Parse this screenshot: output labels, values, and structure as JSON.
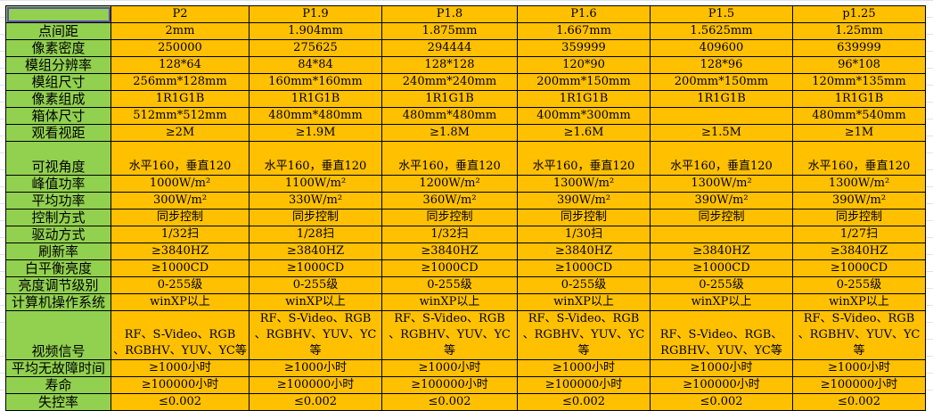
{
  "header": {
    "corner": "",
    "columns": [
      "P2",
      "P1.9",
      "P1.8",
      "P1.6",
      "P1.5",
      "p1.25"
    ]
  },
  "rows": [
    {
      "label": "点间距",
      "values": [
        "2mm",
        "1.904mm",
        "1.875mm",
        "1.667mm",
        "1.5625mm",
        "1.25mm"
      ]
    },
    {
      "label": "像素密度",
      "values": [
        "250000",
        "275625",
        "294444",
        "359999",
        "409600",
        "639999"
      ]
    },
    {
      "label": "模组分辨率",
      "values": [
        "128*64",
        "84*84",
        "128*128",
        "120*90",
        "128*96",
        "96*108"
      ]
    },
    {
      "label": "模组尺寸",
      "values": [
        "256mm*128mm",
        "160mm*160mm",
        "240mm*240mm",
        "200mm*150mm",
        "200mm*150mm",
        "120mm*135mm"
      ]
    },
    {
      "label": "像素组成",
      "values": [
        "1R1G1B",
        "1R1G1B",
        "1R1G1B",
        "1R1G1B",
        "1R1G1B",
        "1R1G1B"
      ]
    },
    {
      "label": "箱体尺寸",
      "values": [
        "512mm*512mm",
        "480mm*480mm",
        "480mm*480mm",
        "400mm*300mm",
        "",
        "480mm*540mm"
      ]
    },
    {
      "label": "观看视距",
      "values": [
        "≥2M",
        "≥1.9M",
        "≥1.8M",
        "≥1.6M",
        "≥1.5M",
        "≥1M"
      ]
    },
    {
      "label": "可视角度",
      "values": [
        "水平160，垂直120",
        "水平160，垂直120",
        "水平160，垂直120",
        "水平160，垂直120",
        "水平160，垂直120",
        "水平160，垂直120"
      ]
    },
    {
      "label": "峰值功率",
      "values": [
        "1000W/m²",
        "1100W/m²",
        "1200W/m²",
        "1300W/m²",
        "1300W/m²",
        "1300W/m²"
      ]
    },
    {
      "label": "平均功率",
      "values": [
        "300W/m²",
        "330W/m²",
        "360W/m²",
        "390W/m²",
        "390W/m²",
        "390W/m²"
      ]
    },
    {
      "label": "控制方式",
      "values": [
        "同步控制",
        "同步控制",
        "同步控制",
        "同步控制",
        "同步控制",
        "同步控制"
      ]
    },
    {
      "label": "驱动方式",
      "values": [
        "1/32扫",
        "1/28扫",
        "1/32扫",
        "1/30扫",
        "",
        "1/27扫"
      ]
    },
    {
      "label": "刷新率",
      "values": [
        "≥3840HZ",
        "≥3840HZ",
        "≥3840HZ",
        "≥3840HZ",
        "≥3840HZ",
        "≥3840HZ"
      ]
    },
    {
      "label": "白平衡亮度",
      "values": [
        "≥1000CD",
        "≥1000CD",
        "≥1000CD",
        "≥1000CD",
        "≥1000CD",
        "≥1000CD"
      ]
    },
    {
      "label": "亮度调节级别",
      "values": [
        "0-255级",
        "0-255级",
        "0-255级",
        "0-255级",
        "0-255级",
        "0-255级"
      ]
    },
    {
      "label": "计算机操作系统",
      "values": [
        "winXP以上",
        "winXP以上",
        "winXP以上",
        "winXP以上",
        "winXP以上",
        "winXP以上"
      ]
    },
    {
      "label": "视频信号",
      "values": [
        "RF、S-Video、RGB\n、RGBHV、YUV、YC等",
        "RF、S-Video、RGB\n、RGBHV、YUV、YC等",
        "RF、S-Video、RGB\n、RGBHV、YUV、YC等",
        "RF、S-Video、RGB\n、RGBHV、YUV、YC等",
        "RF、S-Video、RGB、\nRGBHV、YUV、YC等",
        "RF、S-Video、RGB\n、RGBHV、YUV、YC等"
      ]
    },
    {
      "label": "平均无故障时间",
      "values": [
        "≥1000小时",
        "≥1000小时",
        "≥1000小时",
        "≥1000小时",
        "≥1000小时",
        "≥1000小时"
      ]
    },
    {
      "label": "寿命",
      "values": [
        "≥100000小时",
        "≥100000小时",
        "≥100000小时",
        "≥100000小时",
        "≥100000小时",
        "≥100000小时"
      ]
    },
    {
      "label": "失控率",
      "values": [
        "≤0.002",
        "≤0.002",
        "≤0.002",
        "≤0.002",
        "≤0.002",
        "≤0.002"
      ]
    }
  ],
  "colors": {
    "label_bg": "#92d050",
    "cell_bg": "#ffc000"
  }
}
